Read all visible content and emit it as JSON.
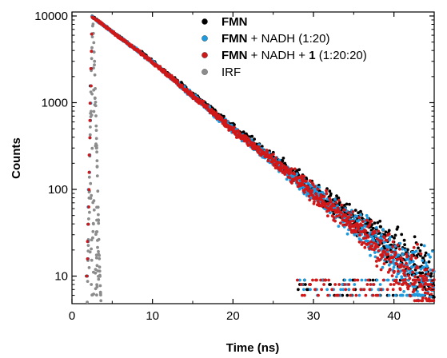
{
  "chart_data": {
    "type": "scatter",
    "xlabel": "Time (ns)",
    "ylabel": "Counts",
    "xlim": [
      0,
      45
    ],
    "ylim": [
      5,
      10000
    ],
    "yscale": "log",
    "xticks": [
      0,
      10,
      20,
      30,
      40
    ],
    "yticks": [
      10,
      100,
      1000,
      10000
    ],
    "x_tick_labels": [
      "0",
      "10",
      "20",
      "30",
      "40"
    ],
    "y_tick_labels": [
      "10",
      "100",
      "1000",
      "10000"
    ],
    "legend_position": "top-right",
    "grid": false,
    "peak": {
      "x": 2.5,
      "y": 9800
    },
    "series": [
      {
        "name_parts": [
          {
            "text": "FMN",
            "bold": true
          }
        ],
        "color": "#000000",
        "decay_points": [
          [
            2.5,
            9800
          ],
          [
            10,
            3000
          ],
          [
            20,
            520
          ],
          [
            30,
            100
          ],
          [
            35,
            45
          ],
          [
            40,
            20
          ],
          [
            45,
            9
          ]
        ]
      },
      {
        "name_parts": [
          {
            "text": "FMN",
            "bold": true
          },
          {
            "text": " + NADH (1:20)",
            "bold": false
          }
        ],
        "color": "#1e9be0",
        "decay_points": [
          [
            2.5,
            9800
          ],
          [
            10,
            2950
          ],
          [
            20,
            490
          ],
          [
            30,
            90
          ],
          [
            35,
            40
          ],
          [
            40,
            17
          ],
          [
            45,
            7
          ]
        ]
      },
      {
        "name_parts": [
          {
            "text": "FMN",
            "bold": true
          },
          {
            "text": " + NADH + ",
            "bold": false
          },
          {
            "text": "1",
            "bold": true
          },
          {
            "text": " (1:20:20)",
            "bold": false
          }
        ],
        "color": "#d01818",
        "decay_points": [
          [
            2.5,
            9800
          ],
          [
            10,
            2950
          ],
          [
            20,
            490
          ],
          [
            30,
            90
          ],
          [
            35,
            38
          ],
          [
            40,
            16
          ],
          [
            45,
            6
          ]
        ]
      },
      {
        "name_parts": [
          {
            "text": "IRF",
            "bold": false
          }
        ],
        "color": "#8c8c8c",
        "pulse_points": [
          [
            1.9,
            5
          ],
          [
            2.2,
            200
          ],
          [
            2.4,
            2500
          ],
          [
            2.6,
            9000
          ],
          [
            2.8,
            3000
          ],
          [
            3.0,
            600
          ],
          [
            3.2,
            100
          ],
          [
            3.4,
            15
          ],
          [
            3.6,
            5
          ]
        ]
      }
    ]
  }
}
